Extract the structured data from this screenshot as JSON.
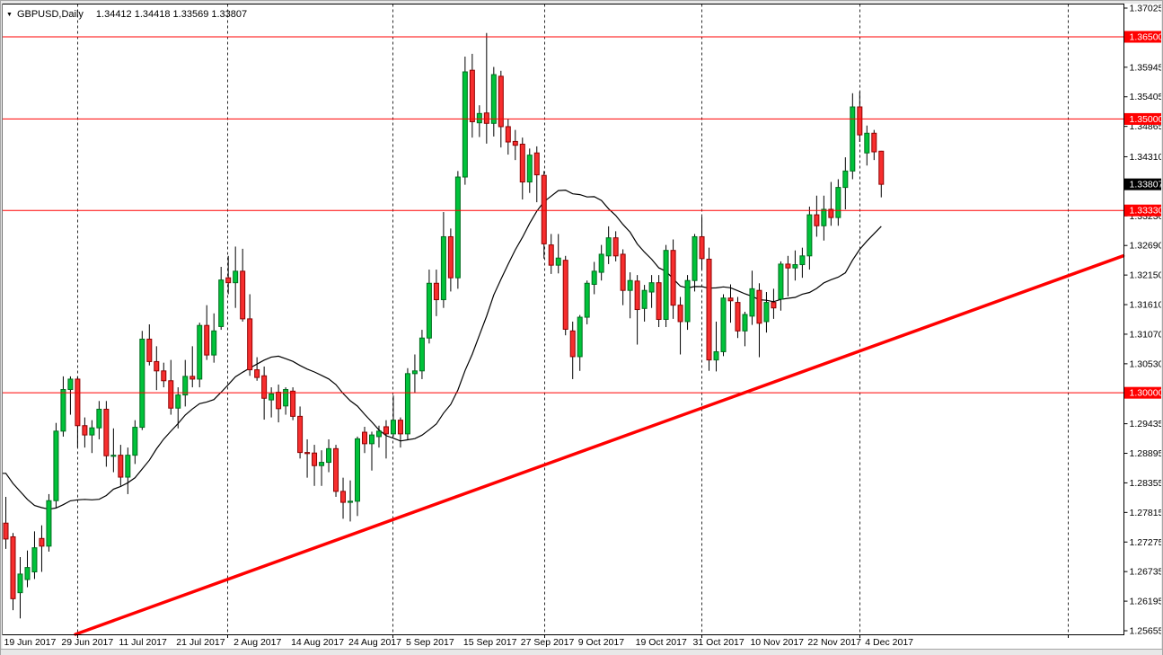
{
  "window": {
    "dropdown_icon": "▼",
    "symbol_label": "GBPUSD,Daily",
    "quote_line": "1.34412 1.34418 1.33569 1.33807"
  },
  "colors": {
    "bull": "#00c23a",
    "bull_border": "#006e1e",
    "bear": "#f72e2e",
    "bear_border": "#8f0000",
    "wick": "#000000",
    "ma_line": "#000000",
    "red_line": "#ff0000",
    "grid_dash": "#2b2b2b",
    "axis_text": "#000000",
    "tag_text": "#ffffff",
    "tag_black_bg": "#000000",
    "frame_gray": "#e8e8e8",
    "frame_edge": "#a6a6a6"
  },
  "chart_data": {
    "type": "candlestick",
    "symbol": "GBPUSD",
    "timeframe": "Daily",
    "quote": {
      "open": "1.34412",
      "high": "1.34418",
      "low": "1.33569",
      "close": "1.33807"
    },
    "y_axis": {
      "min": 1.25655,
      "max": 1.37025,
      "ticks": [
        "1.37025",
        "1.35945",
        "1.35405",
        "1.34865",
        "1.34310",
        "1.33230",
        "1.32690",
        "1.32150",
        "1.31610",
        "1.31070",
        "1.30530",
        "1.29435",
        "1.28895",
        "1.28355",
        "1.27815",
        "1.27275",
        "1.26735",
        "1.26195",
        "1.25655"
      ]
    },
    "x_axis": {
      "labels": [
        {
          "bar": 0,
          "label": "19 Jun 2017"
        },
        {
          "bar": 8,
          "label": "29 Jun 2017"
        },
        {
          "bar": 16,
          "label": "11 Jul 2017"
        },
        {
          "bar": 24,
          "label": "21 Jul 2017"
        },
        {
          "bar": 32,
          "label": "2 Aug 2017"
        },
        {
          "bar": 40,
          "label": "14 Aug 2017"
        },
        {
          "bar": 48,
          "label": "24 Aug 2017"
        },
        {
          "bar": 56,
          "label": "5 Sep 2017"
        },
        {
          "bar": 64,
          "label": "15 Sep 2017"
        },
        {
          "bar": 72,
          "label": "27 Sep 2017"
        },
        {
          "bar": 80,
          "label": "9 Oct 2017"
        },
        {
          "bar": 88,
          "label": "19 Oct 2017"
        },
        {
          "bar": 96,
          "label": "31 Oct 2017"
        },
        {
          "bar": 104,
          "label": "10 Nov 2017"
        },
        {
          "bar": 112,
          "label": "22 Nov 2017"
        },
        {
          "bar": 120,
          "label": "4 Dec 2017"
        }
      ]
    },
    "hlines": [
      {
        "price": 1.365,
        "label": "1.36500"
      },
      {
        "price": 1.35,
        "label": "1.35000"
      },
      {
        "price": 1.3333,
        "label": "1.33330"
      },
      {
        "price": 1.3,
        "label": "1.30000"
      }
    ],
    "current_price_tag": {
      "price": 1.33807,
      "label": "1.33807"
    },
    "trendline": {
      "bar1": 9.7,
      "price1": 1.2559,
      "bar2": 155.7,
      "price2": 1.325
    },
    "ma": {
      "type": "SMA",
      "period": 20,
      "pre_closes": [
        1.2995,
        1.296,
        1.297,
        1.294,
        1.28,
        1.2857,
        1.2889,
        1.2882,
        1.2885,
        1.2904,
        1.2905,
        1.2955,
        1.295,
        1.2745,
        1.2655,
        1.2752,
        1.2747,
        1.2757,
        1.2777
      ]
    },
    "month_separators": [
      "3 Jul 2017",
      "1 Aug 2017",
      "1 Sep 2017",
      "2 Oct 2017",
      "1 Nov 2017",
      "1 Dec 2017",
      "1 Jan 2018"
    ],
    "candles": [
      [
        "06.19",
        1.2762,
        1.281,
        1.2715,
        1.2733
      ],
      [
        "06.20",
        1.2737,
        1.2744,
        1.2603,
        1.2624
      ],
      [
        "06.21",
        1.2635,
        1.27,
        1.2588,
        1.2669
      ],
      [
        "06.22",
        1.2659,
        1.2712,
        1.2645,
        1.2681
      ],
      [
        "06.23",
        1.2673,
        1.2747,
        1.266,
        1.2717
      ],
      [
        "06.26",
        1.2734,
        1.2758,
        1.2673,
        1.272
      ],
      [
        "06.27",
        1.272,
        1.2815,
        1.271,
        1.2803
      ],
      [
        "06.28",
        1.2803,
        1.2945,
        1.279,
        1.293
      ],
      [
        "06.29",
        1.293,
        1.303,
        1.292,
        1.3006
      ],
      [
        "06.30",
        1.3006,
        1.303,
        1.296,
        1.3025
      ],
      [
        "07.03",
        1.3025,
        1.303,
        1.29,
        1.294
      ],
      [
        "07.04",
        1.294,
        1.2955,
        1.29,
        1.2923
      ],
      [
        "07.05",
        1.2923,
        1.295,
        1.289,
        1.2936
      ],
      [
        "07.06",
        1.2936,
        1.2985,
        1.2915,
        1.297
      ],
      [
        "07.07",
        1.297,
        1.2985,
        1.2865,
        1.2885
      ],
      [
        "07.10",
        1.2885,
        1.2935,
        1.2855,
        1.2886
      ],
      [
        "07.11",
        1.2886,
        1.2905,
        1.283,
        1.2846
      ],
      [
        "07.12",
        1.2846,
        1.29,
        1.2815,
        1.2886
      ],
      [
        "07.13",
        1.2886,
        1.295,
        1.287,
        1.2937
      ],
      [
        "07.14",
        1.2937,
        1.3113,
        1.2932,
        1.3098
      ],
      [
        "07.17",
        1.3098,
        1.3125,
        1.305,
        1.3057
      ],
      [
        "07.18",
        1.3057,
        1.3085,
        1.3005,
        1.304
      ],
      [
        "07.19",
        1.304,
        1.3055,
        1.301,
        1.3022
      ],
      [
        "07.20",
        1.3022,
        1.306,
        1.296,
        1.2972
      ],
      [
        "07.21",
        1.2972,
        1.301,
        1.2935,
        1.2996
      ],
      [
        "07.24",
        1.2996,
        1.306,
        1.2975,
        1.303
      ],
      [
        "07.25",
        1.303,
        1.3085,
        1.301,
        1.3025
      ],
      [
        "07.26",
        1.3025,
        1.3128,
        1.301,
        1.3123
      ],
      [
        "07.27",
        1.3123,
        1.316,
        1.306,
        1.3069
      ],
      [
        "07.28",
        1.3069,
        1.3145,
        1.3055,
        1.3113
      ],
      [
        "07.31",
        1.3121,
        1.323,
        1.3115,
        1.3206
      ],
      [
        "08.01",
        1.321,
        1.325,
        1.318,
        1.3201
      ],
      [
        "08.02",
        1.3201,
        1.3267,
        1.3155,
        1.3222
      ],
      [
        "08.03",
        1.3222,
        1.3263,
        1.313,
        1.3135
      ],
      [
        "08.04",
        1.3135,
        1.318,
        1.3031,
        1.3042
      ],
      [
        "08.07",
        1.3042,
        1.3065,
        1.3022,
        1.3028
      ],
      [
        "08.08",
        1.3031,
        1.3048,
        1.2951,
        1.299
      ],
      [
        "08.09",
        1.2987,
        1.301,
        1.2955,
        1.2998
      ],
      [
        "08.10",
        1.3001,
        1.3015,
        1.2946,
        1.2971
      ],
      [
        "08.11",
        1.2976,
        1.301,
        1.296,
        1.3006
      ],
      [
        "08.14",
        1.3003,
        1.301,
        1.295,
        1.2957
      ],
      [
        "08.15",
        1.2957,
        1.2975,
        1.288,
        1.2891
      ],
      [
        "08.16",
        1.2891,
        1.2915,
        1.2845,
        1.289
      ],
      [
        "08.17",
        1.289,
        1.2905,
        1.283,
        1.2867
      ],
      [
        "08.18",
        1.2867,
        1.2895,
        1.283,
        1.2873
      ],
      [
        "08.21",
        1.2873,
        1.2915,
        1.2855,
        1.2898
      ],
      [
        "08.22",
        1.2898,
        1.2905,
        1.281,
        1.282
      ],
      [
        "08.23",
        1.282,
        1.2845,
        1.277,
        1.28
      ],
      [
        "08.24",
        1.28,
        1.284,
        1.2765,
        1.2802
      ],
      [
        "08.25",
        1.2802,
        1.292,
        1.2775,
        1.2916
      ],
      [
        "08.28",
        1.2928,
        1.2938,
        1.289,
        1.2907
      ],
      [
        "08.29",
        1.2907,
        1.2929,
        1.2858,
        1.2923
      ],
      [
        "08.30",
        1.292,
        1.294,
        1.29,
        1.293
      ],
      [
        "08.31",
        1.2938,
        1.295,
        1.288,
        1.2925
      ],
      [
        "09.01",
        1.2925,
        1.2995,
        1.292,
        1.295
      ],
      [
        "09.04",
        1.295,
        1.2955,
        1.29,
        1.2925
      ],
      [
        "09.05",
        1.2925,
        1.3045,
        1.2915,
        1.3035
      ],
      [
        "09.06",
        1.3035,
        1.307,
        1.3,
        1.304
      ],
      [
        "09.07",
        1.304,
        1.3115,
        1.3025,
        1.31
      ],
      [
        "09.08",
        1.31,
        1.3225,
        1.309,
        1.32
      ],
      [
        "09.11",
        1.32,
        1.3225,
        1.314,
        1.317
      ],
      [
        "09.12",
        1.317,
        1.333,
        1.3155,
        1.3285
      ],
      [
        "09.13",
        1.3285,
        1.33,
        1.3185,
        1.321
      ],
      [
        "09.14",
        1.321,
        1.3405,
        1.319,
        1.3394
      ],
      [
        "09.15",
        1.3394,
        1.3614,
        1.338,
        1.3586
      ],
      [
        "09.18",
        1.3589,
        1.3619,
        1.3466,
        1.3495
      ],
      [
        "09.19",
        1.3493,
        1.3525,
        1.3467,
        1.351
      ],
      [
        "09.20",
        1.3511,
        1.3657,
        1.3455,
        1.3492
      ],
      [
        "09.21",
        1.3492,
        1.3595,
        1.3468,
        1.3581
      ],
      [
        "09.22",
        1.3578,
        1.3588,
        1.3448,
        1.3486
      ],
      [
        "09.25",
        1.3486,
        1.35,
        1.3435,
        1.3458
      ],
      [
        "09.26",
        1.3459,
        1.348,
        1.3425,
        1.3452
      ],
      [
        "09.27",
        1.3454,
        1.3466,
        1.3353,
        1.3385
      ],
      [
        "09.28",
        1.3385,
        1.3446,
        1.3365,
        1.3434
      ],
      [
        "09.29",
        1.3438,
        1.345,
        1.3348,
        1.3398
      ],
      [
        "10.02",
        1.3397,
        1.3405,
        1.3245,
        1.3272
      ],
      [
        "10.03",
        1.327,
        1.329,
        1.3217,
        1.3233
      ],
      [
        "10.04",
        1.3233,
        1.329,
        1.3218,
        1.3246
      ],
      [
        "10.05",
        1.3242,
        1.325,
        1.3105,
        1.3116
      ],
      [
        "10.06",
        1.3113,
        1.313,
        1.3025,
        1.3066
      ],
      [
        "10.09",
        1.3066,
        1.3142,
        1.304,
        1.3138
      ],
      [
        "10.10",
        1.3138,
        1.3205,
        1.3125,
        1.32
      ],
      [
        "10.11",
        1.3198,
        1.3239,
        1.318,
        1.3222
      ],
      [
        "10.12",
        1.322,
        1.327,
        1.3205,
        1.3253
      ],
      [
        "10.13",
        1.325,
        1.3304,
        1.3235,
        1.3283
      ],
      [
        "10.16",
        1.3283,
        1.3295,
        1.324,
        1.325
      ],
      [
        "10.17",
        1.3253,
        1.3262,
        1.316,
        1.3187
      ],
      [
        "10.18",
        1.3187,
        1.322,
        1.3136,
        1.3205
      ],
      [
        "10.19",
        1.3204,
        1.3215,
        1.3088,
        1.3152
      ],
      [
        "10.20",
        1.3154,
        1.3197,
        1.313,
        1.3187
      ],
      [
        "10.23",
        1.3184,
        1.3215,
        1.3155,
        1.3201
      ],
      [
        "10.24",
        1.3201,
        1.3215,
        1.312,
        1.3134
      ],
      [
        "10.25",
        1.3134,
        1.327,
        1.312,
        1.326
      ],
      [
        "10.26",
        1.326,
        1.328,
        1.3135,
        1.316
      ],
      [
        "10.27",
        1.316,
        1.3175,
        1.307,
        1.313
      ],
      [
        "10.30",
        1.313,
        1.3215,
        1.3115,
        1.3205
      ],
      [
        "10.31",
        1.3205,
        1.329,
        1.3185,
        1.3285
      ],
      [
        "11.01",
        1.3285,
        1.3321,
        1.3225,
        1.3245
      ],
      [
        "11.02",
        1.3244,
        1.3265,
        1.304,
        1.306
      ],
      [
        "11.03",
        1.306,
        1.313,
        1.3039,
        1.3075
      ],
      [
        "11.06",
        1.3075,
        1.318,
        1.3067,
        1.3173
      ],
      [
        "11.07",
        1.3173,
        1.3198,
        1.3128,
        1.3168
      ],
      [
        "11.08",
        1.3165,
        1.3175,
        1.31,
        1.3113
      ],
      [
        "11.09",
        1.3113,
        1.3148,
        1.3085,
        1.3143
      ],
      [
        "11.10",
        1.314,
        1.3223,
        1.3124,
        1.319
      ],
      [
        "11.13",
        1.3187,
        1.32,
        1.3065,
        1.3127
      ],
      [
        "11.14",
        1.313,
        1.3184,
        1.311,
        1.3165
      ],
      [
        "11.15",
        1.3165,
        1.319,
        1.3135,
        1.3155
      ],
      [
        "11.16",
        1.3171,
        1.324,
        1.315,
        1.3235
      ],
      [
        "11.17",
        1.3235,
        1.325,
        1.3176,
        1.3228
      ],
      [
        "11.20",
        1.3228,
        1.326,
        1.3205,
        1.3234
      ],
      [
        "11.21",
        1.3234,
        1.3265,
        1.321,
        1.325
      ],
      [
        "11.22",
        1.325,
        1.334,
        1.3225,
        1.3325
      ],
      [
        "11.23",
        1.3325,
        1.336,
        1.3285,
        1.3305
      ],
      [
        "11.24",
        1.3305,
        1.336,
        1.3278,
        1.3335
      ],
      [
        "11.27",
        1.3335,
        1.3385,
        1.3305,
        1.332
      ],
      [
        "11.28",
        1.332,
        1.339,
        1.3305,
        1.3375
      ],
      [
        "11.29",
        1.3375,
        1.343,
        1.3335,
        1.3405
      ],
      [
        "11.30",
        1.3405,
        1.3547,
        1.339,
        1.3522
      ],
      [
        "12.01",
        1.3522,
        1.355,
        1.3458,
        1.3471
      ],
      [
        "12.04",
        1.3438,
        1.3488,
        1.3415,
        1.3474
      ],
      [
        "12.05",
        1.3474,
        1.348,
        1.3425,
        1.344
      ],
      [
        "12.06",
        1.34412,
        1.34418,
        1.33569,
        1.33807
      ]
    ]
  }
}
